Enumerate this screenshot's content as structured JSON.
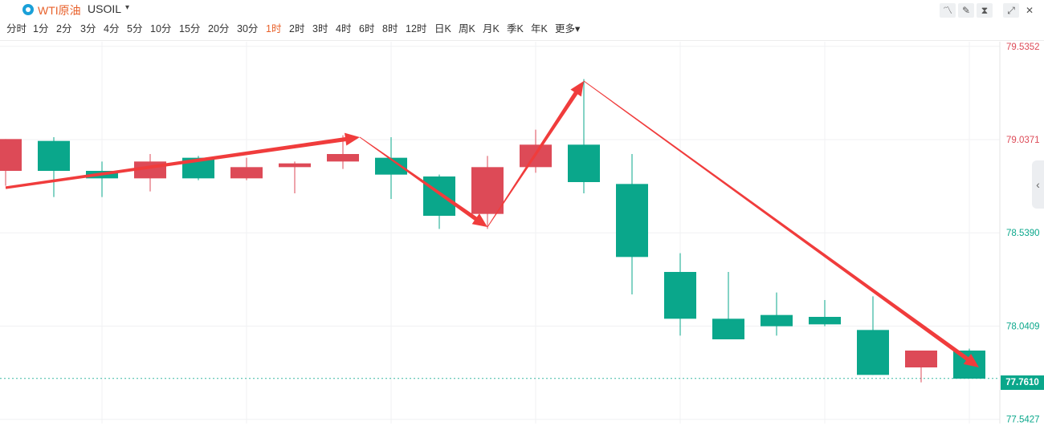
{
  "header": {
    "name": "WTI原油",
    "symbol": "USOIL",
    "caret": "▾",
    "logo_icon": "circle-logo-icon",
    "tools": [
      {
        "icon": "line-chart-icon",
        "glyph": "〽"
      },
      {
        "icon": "pencil-icon",
        "glyph": "✎"
      },
      {
        "icon": "candles-icon",
        "glyph": "⧗"
      },
      {
        "icon": "fullscreen-icon",
        "glyph": "⤢"
      },
      {
        "icon": "close-icon",
        "glyph": "✕"
      }
    ]
  },
  "periods": [
    "分时",
    "1分",
    "2分",
    "3分",
    "4分",
    "5分",
    "10分",
    "15分",
    "20分",
    "30分",
    "1时",
    "2时",
    "3时",
    "4时",
    "6时",
    "8时",
    "12时",
    "日K",
    "周K",
    "月K",
    "季K",
    "年K",
    "更多▾"
  ],
  "active_period": "1时",
  "colors": {
    "up": "#dd4a57",
    "down": "#0aa78b",
    "arrow": "#f03c3c",
    "accent": "#e8622c"
  },
  "collapse_icon": "chevron-left-icon",
  "chart_data": {
    "type": "candlestick",
    "ylim": [
      77.52,
      79.56
    ],
    "y_ticks": [
      {
        "label": "79.5352",
        "value": 79.5352,
        "color": "#dd4a57"
      },
      {
        "label": "79.0371",
        "value": 79.0371,
        "color": "#dd4a57"
      },
      {
        "label": "78.5390",
        "value": 78.539,
        "color": "#0aa78b"
      },
      {
        "label": "78.0409",
        "value": 78.0409,
        "color": "#0aa78b"
      },
      {
        "label": "77.5427",
        "value": 77.5427,
        "color": "#0aa78b"
      }
    ],
    "last_price": {
      "label": "77.7610",
      "value": 77.761
    },
    "candles": [
      {
        "o": 78.87,
        "h": 79.04,
        "l": 78.79,
        "c": 79.04
      },
      {
        "o": 79.03,
        "h": 79.05,
        "l": 78.73,
        "c": 78.87
      },
      {
        "o": 78.87,
        "h": 78.92,
        "l": 78.73,
        "c": 78.83
      },
      {
        "o": 78.83,
        "h": 78.96,
        "l": 78.76,
        "c": 78.92
      },
      {
        "o": 78.94,
        "h": 78.95,
        "l": 78.82,
        "c": 78.83
      },
      {
        "o": 78.83,
        "h": 78.94,
        "l": 78.82,
        "c": 78.89
      },
      {
        "o": 78.89,
        "h": 78.92,
        "l": 78.75,
        "c": 78.91
      },
      {
        "o": 78.92,
        "h": 79.06,
        "l": 78.88,
        "c": 78.96
      },
      {
        "o": 78.94,
        "h": 79.05,
        "l": 78.72,
        "c": 78.85
      },
      {
        "o": 78.84,
        "h": 78.85,
        "l": 78.56,
        "c": 78.63
      },
      {
        "o": 78.64,
        "h": 78.95,
        "l": 78.56,
        "c": 78.89
      },
      {
        "o": 78.89,
        "h": 79.09,
        "l": 78.86,
        "c": 79.01
      },
      {
        "o": 79.01,
        "h": 79.36,
        "l": 78.75,
        "c": 78.81
      },
      {
        "o": 78.8,
        "h": 78.96,
        "l": 78.21,
        "c": 78.41
      },
      {
        "o": 78.33,
        "h": 78.43,
        "l": 77.99,
        "c": 78.08
      },
      {
        "o": 78.08,
        "h": 78.33,
        "l": 77.97,
        "c": 77.97
      },
      {
        "o": 78.1,
        "h": 78.22,
        "l": 77.99,
        "c": 78.04
      },
      {
        "o": 78.09,
        "h": 78.18,
        "l": 78.04,
        "c": 78.05
      },
      {
        "o": 78.02,
        "h": 78.2,
        "l": 77.78,
        "c": 77.78
      },
      {
        "o": 77.82,
        "h": 77.91,
        "l": 77.74,
        "c": 77.91
      },
      {
        "o": 77.91,
        "h": 77.92,
        "l": 77.76,
        "c": 77.76
      }
    ],
    "arrows": [
      {
        "from": [
          0,
          78.78
        ],
        "to": [
          7.35,
          79.05
        ],
        "style": "bold"
      },
      {
        "from": [
          7.35,
          79.05
        ],
        "to": [
          10.0,
          78.57
        ],
        "style": "thin-to-bold"
      },
      {
        "from": [
          10.0,
          78.57
        ],
        "to": [
          12.0,
          79.35
        ],
        "style": "thin-to-bold"
      },
      {
        "from": [
          12.0,
          79.35
        ],
        "to": [
          20.2,
          77.82
        ],
        "style": "thin-to-bold"
      }
    ]
  }
}
